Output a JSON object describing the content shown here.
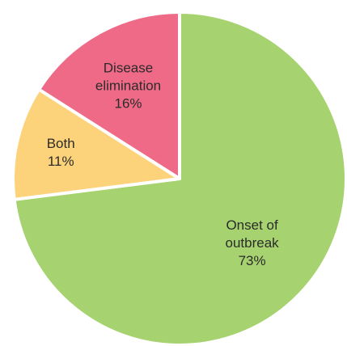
{
  "chart_data": {
    "type": "pie",
    "title": "",
    "slices": [
      {
        "label_lines": [
          "Onset of",
          "outbreak"
        ],
        "value": 73,
        "value_label": "73%",
        "color": "#a6d36f"
      },
      {
        "label_lines": [
          "Both"
        ],
        "value": 11,
        "value_label": "11%",
        "color": "#fcd27a"
      },
      {
        "label_lines": [
          "Disease",
          "elimination"
        ],
        "value": 16,
        "value_label": "16%",
        "color": "#ee6a87"
      }
    ],
    "legend": "none"
  }
}
